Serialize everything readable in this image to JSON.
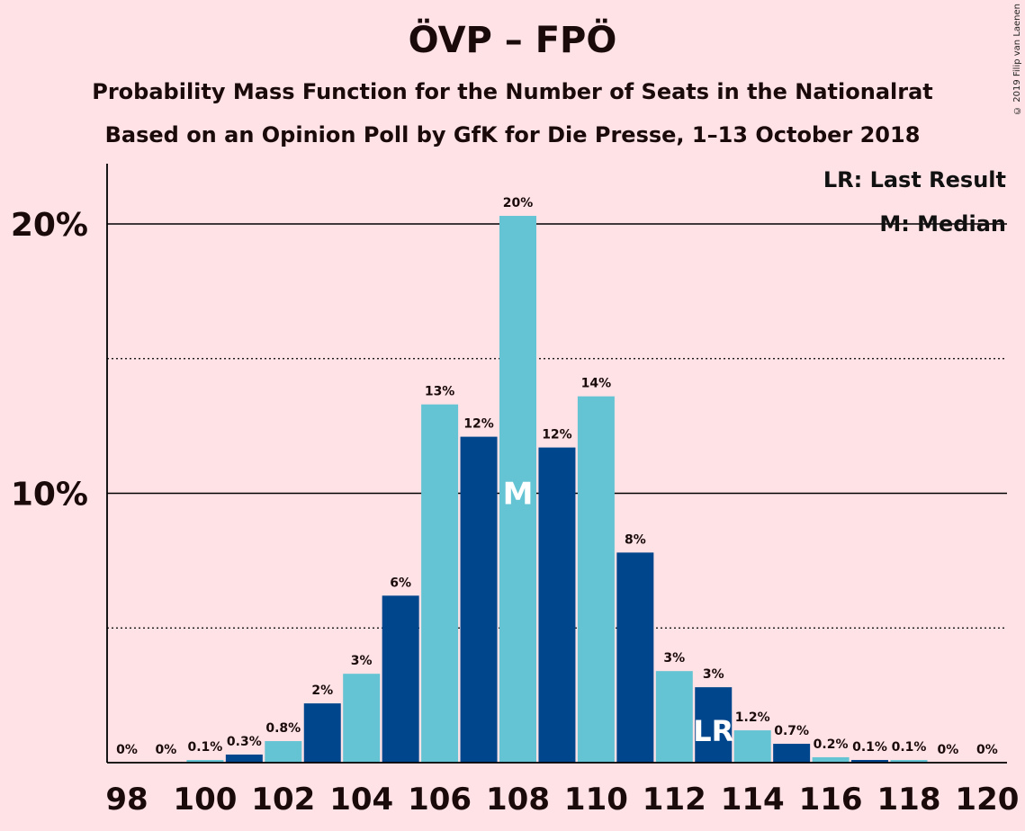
{
  "title": "ÖVP – FPÖ",
  "subtitle1": "Probability Mass Function for the Number of Seats in the Nationalrat",
  "subtitle2": "Based on an Opinion Poll by GfK for Die Presse, 1–13 October 2018",
  "copyright": "© 2019 Filip van Laenen",
  "legend": {
    "last_result": "LR: Last Result",
    "median": "M: Median"
  },
  "colors": {
    "background": "#ffe2e6",
    "dark_bar": "#00468c",
    "light_bar": "#65c4d3",
    "text": "#1a0a0a"
  },
  "chart_data": {
    "type": "bar",
    "categories": [
      98,
      99,
      100,
      101,
      102,
      103,
      104,
      105,
      106,
      107,
      108,
      109,
      110,
      111,
      112,
      113,
      114,
      115,
      116,
      117,
      118,
      119,
      120
    ],
    "values": [
      0,
      0,
      0.1,
      0.3,
      0.8,
      2.2,
      3.3,
      6.2,
      13.3,
      12.1,
      20.3,
      11.7,
      13.6,
      7.8,
      3.4,
      2.8,
      1.2,
      0.7,
      0.2,
      0.1,
      0.1,
      0,
      0
    ],
    "data_labels": [
      "0%",
      "0%",
      "0.1%",
      "0.3%",
      "0.8%",
      "2%",
      "3%",
      "6%",
      "13%",
      "12%",
      "20%",
      "12%",
      "14%",
      "8%",
      "3%",
      "3%",
      "1.2%",
      "0.7%",
      "0.2%",
      "0.1%",
      "0.1%",
      "0%",
      "0%"
    ],
    "x_tick_labels": [
      "98",
      "100",
      "102",
      "104",
      "106",
      "108",
      "110",
      "112",
      "114",
      "116",
      "118",
      "120"
    ],
    "x_tick_values": [
      98,
      100,
      102,
      104,
      106,
      108,
      110,
      112,
      114,
      116,
      118,
      120
    ],
    "y_tick_labels": [
      "10%",
      "20%"
    ],
    "y_tick_values": [
      10,
      20
    ],
    "y_dotted_lines": [
      5,
      15
    ],
    "ylim": [
      0,
      22.2
    ],
    "median_seat": 108,
    "median_label": "M",
    "last_result_seat": 113,
    "last_result_label": "LR",
    "xlabel": "",
    "ylabel": ""
  }
}
